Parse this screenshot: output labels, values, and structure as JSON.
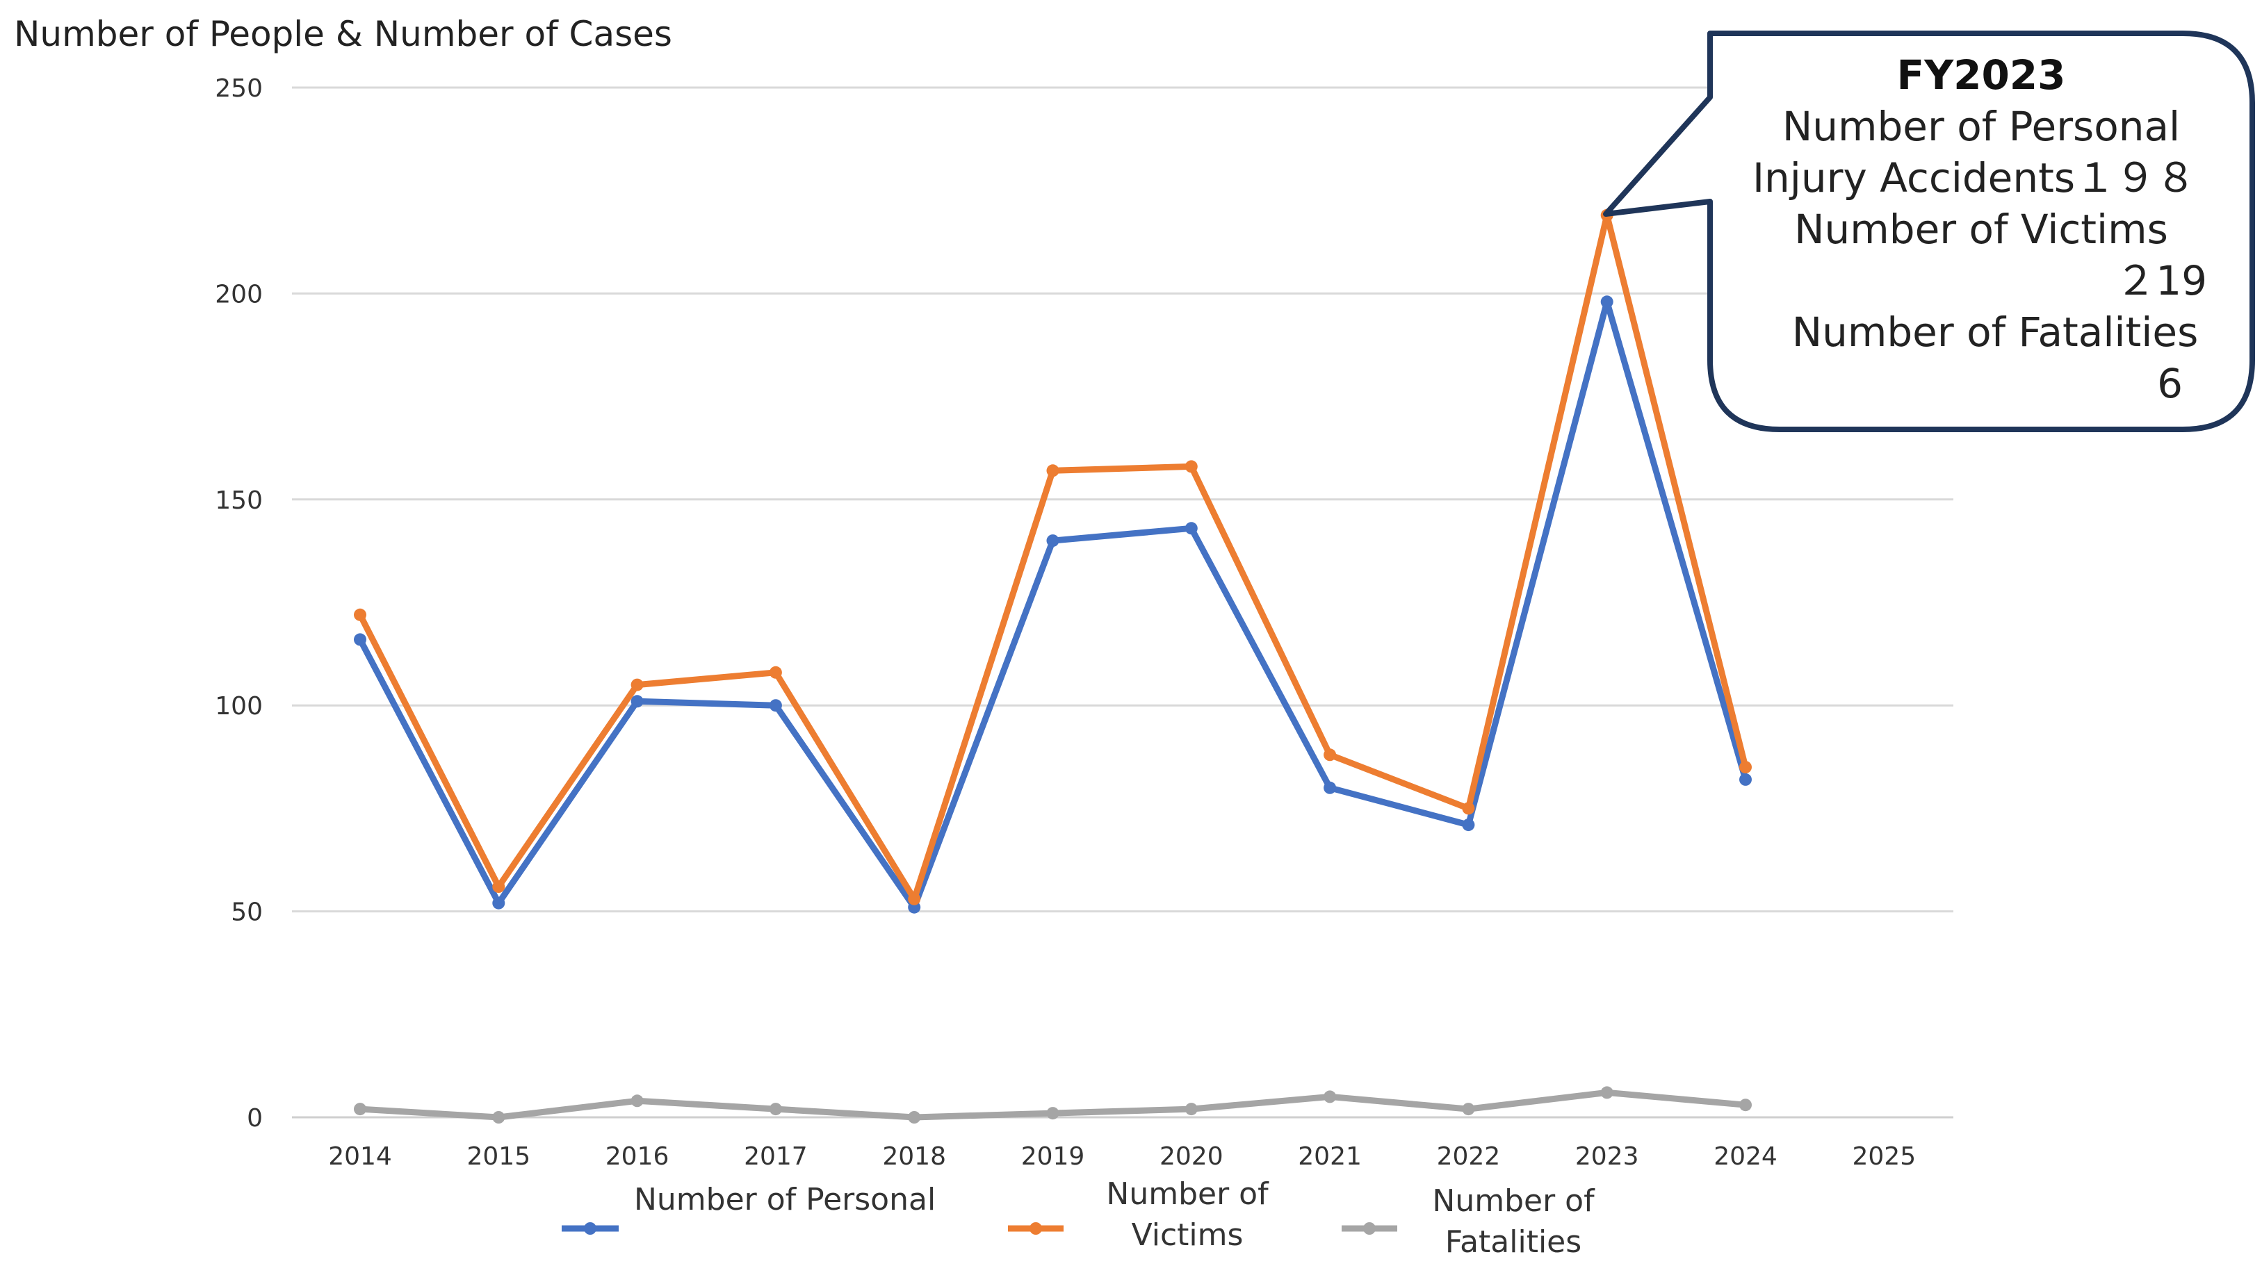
{
  "chart_data": {
    "type": "line",
    "ylabel": "Number of People  & Number of Cases",
    "ylim": [
      0,
      250
    ],
    "yticks": [
      0,
      50,
      100,
      150,
      200,
      250
    ],
    "categories": [
      "2014",
      "2015",
      "2016",
      "2017",
      "2018",
      "2019",
      "2020",
      "2021",
      "2022",
      "2023",
      "2024",
      "2025"
    ],
    "grid": true,
    "legend_position": "bottom",
    "series": [
      {
        "name": "Number of Personal",
        "color": "#4472C4",
        "values": [
          116,
          52,
          101,
          100,
          51,
          140,
          143,
          80,
          71,
          198,
          82,
          null
        ]
      },
      {
        "name": "Number of Victims",
        "color": "#ED7D31",
        "values": [
          122,
          56,
          105,
          108,
          53,
          157,
          158,
          88,
          75,
          219,
          85,
          null
        ]
      },
      {
        "name": "Number of Fatalities",
        "color": "#A5A5A5",
        "values": [
          2,
          0,
          4,
          2,
          0,
          1,
          2,
          5,
          2,
          6,
          3,
          null
        ]
      }
    ],
    "legend": {
      "personal_label": "Number of Personal",
      "victims_line1": "Number of",
      "victims_line2": "Victims",
      "fatalities_line1": "Number of",
      "fatalities_line2": "Fatalities"
    },
    "callout": {
      "title": "FY2023",
      "line1": "Number of Personal",
      "line2": "Injury Accidents１９８",
      "line3": "Number of Victims",
      "line4": "２19",
      "line5": "Number of Fatalities",
      "line6": "6"
    }
  }
}
